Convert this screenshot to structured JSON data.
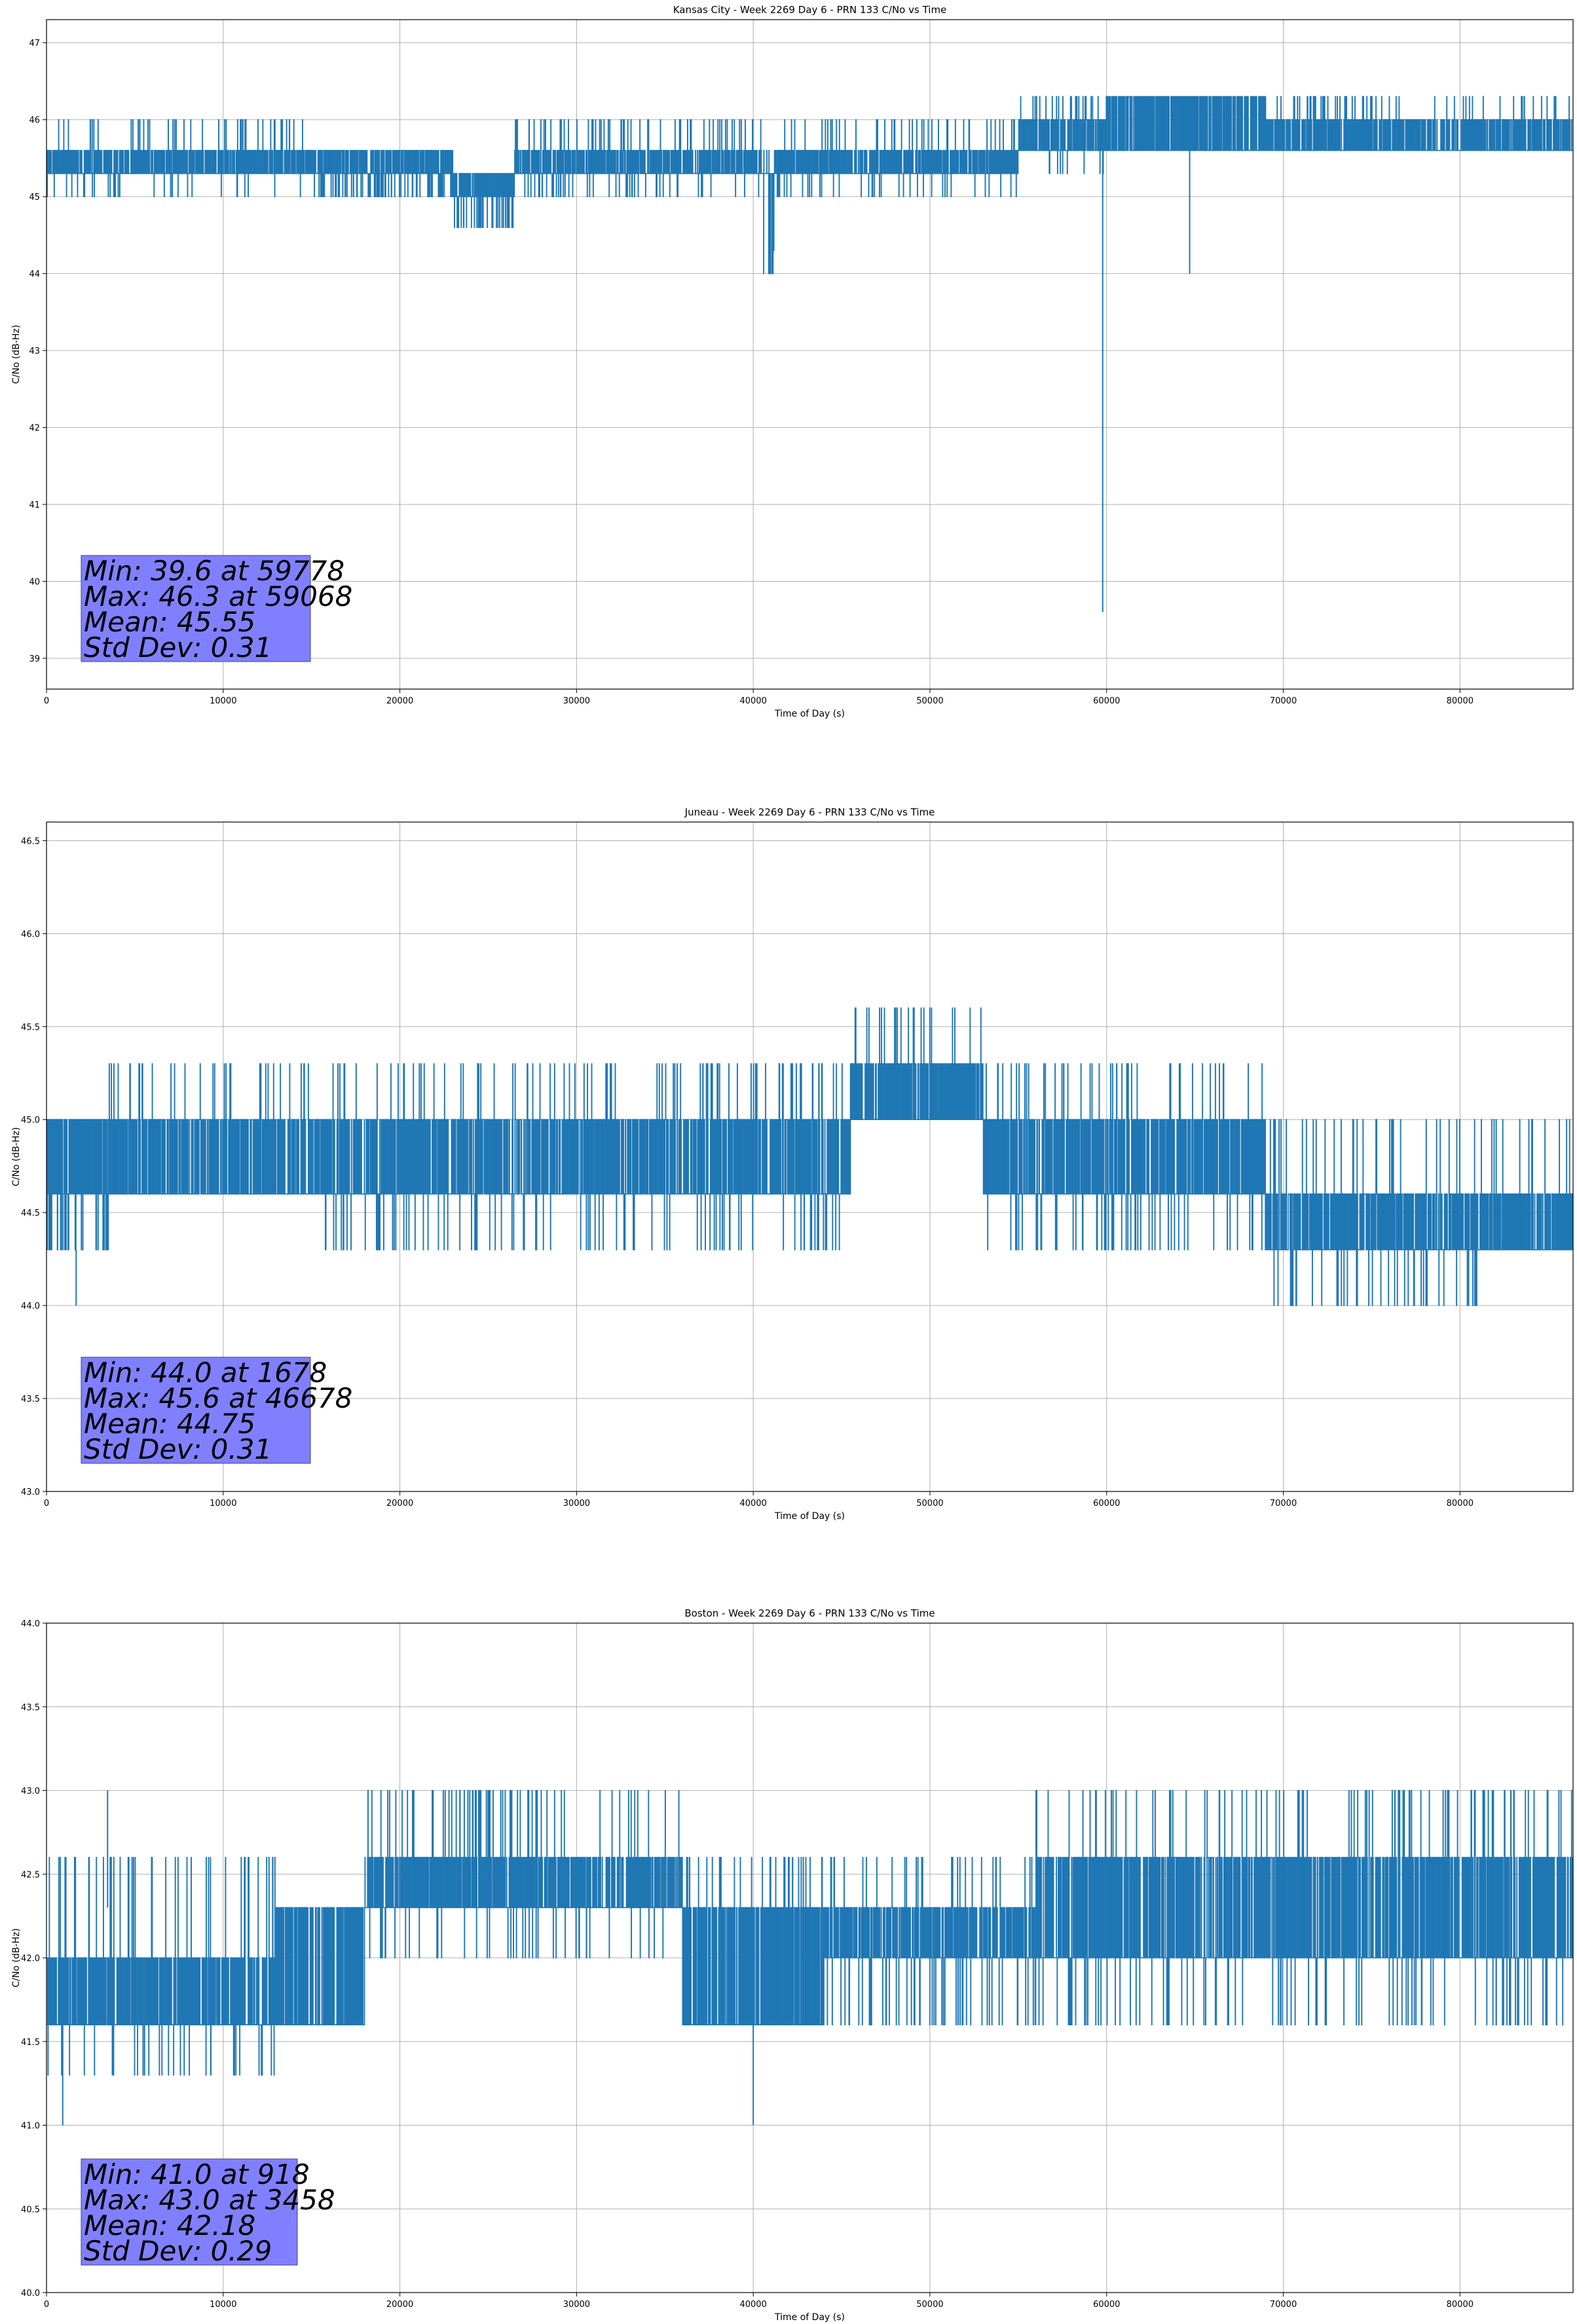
{
  "chart_data": [
    {
      "type": "line",
      "title": "Kansas City - Week 2269 Day 6 - PRN 133 C/No vs Time",
      "xlabel": "Time of Day (s)",
      "ylabel": "C/No (dB-Hz)",
      "xlim": [
        0,
        86400
      ],
      "ylim": [
        38.6,
        47.3
      ],
      "x_ticks": [
        0,
        10000,
        20000,
        30000,
        40000,
        50000,
        60000,
        70000,
        80000
      ],
      "y_ticks": [
        39,
        40,
        41,
        42,
        43,
        44,
        45,
        46,
        47
      ],
      "y_tick_labels": [
        "39",
        "40",
        "41",
        "42",
        "43",
        "44",
        "45",
        "46",
        "47"
      ],
      "grid": true,
      "color": "#1f77b4",
      "stats": [
        "Min: 39.6 at 59778",
        "Max: 46.3 at 59068",
        "Mean: 45.55",
        "Std Dev: 0.31"
      ],
      "segments": [
        {
          "x": [
            0,
            3000
          ],
          "base": 45.3,
          "hi": 45.6,
          "lo": 45.3,
          "up": 46.0,
          "down": 45.0
        },
        {
          "x": [
            3000,
            15000
          ],
          "base": 45.3,
          "hi": 45.6,
          "lo": 45.3,
          "up": 46.0,
          "down": 45.0
        },
        {
          "x": [
            15000,
            23000
          ],
          "base": 45.3,
          "hi": 45.6,
          "lo": 45.0,
          "up": 45.6,
          "down": 45.0
        },
        {
          "x": [
            23000,
            26500
          ],
          "base": 45.0,
          "hi": 45.3,
          "lo": 44.6,
          "up": 45.3,
          "down": 44.6
        },
        {
          "x": [
            26500,
            40500
          ],
          "base": 45.3,
          "hi": 45.6,
          "lo": 45.3,
          "up": 46.0,
          "down": 45.0
        },
        {
          "x": [
            40500,
            41200
          ],
          "base": 45.3,
          "hi": 45.3,
          "lo": 44.3,
          "up": 45.6,
          "down": 44.0
        },
        {
          "x": [
            41200,
            55000
          ],
          "base": 45.3,
          "hi": 45.6,
          "lo": 45.3,
          "up": 46.0,
          "down": 45.0
        },
        {
          "x": [
            55000,
            60000
          ],
          "base": 45.6,
          "hi": 46.0,
          "lo": 45.6,
          "up": 46.3,
          "down": 45.3
        },
        {
          "x": [
            60000,
            69000
          ],
          "base": 45.6,
          "hi": 46.3,
          "lo": 45.6,
          "up": 46.3,
          "down": 45.6
        },
        {
          "x": [
            69000,
            86400
          ],
          "base": 45.6,
          "hi": 46.0,
          "lo": 45.6,
          "up": 46.3,
          "down": 45.6
        }
      ],
      "spikes": [
        {
          "x": 59778,
          "from": 45.6,
          "to": 39.6
        },
        {
          "x": 64700,
          "from": 45.6,
          "to": 44.0
        },
        {
          "x": 40900,
          "from": 45.3,
          "to": 44.0
        }
      ]
    },
    {
      "type": "line",
      "title": "Juneau - Week 2269 Day 6 - PRN 133 C/No vs Time",
      "xlabel": "Time of Day (s)",
      "ylabel": "C/No (dB-Hz)",
      "xlim": [
        0,
        86400
      ],
      "ylim": [
        43.0,
        46.6
      ],
      "x_ticks": [
        0,
        10000,
        20000,
        30000,
        40000,
        50000,
        60000,
        70000,
        80000
      ],
      "y_ticks": [
        43.0,
        43.5,
        44.0,
        44.5,
        45.0,
        45.5,
        46.0,
        46.5
      ],
      "y_tick_labels": [
        "43.0",
        "43.5",
        "44.0",
        "44.5",
        "45.0",
        "45.5",
        "46.0",
        "46.5"
      ],
      "grid": true,
      "color": "#1f77b4",
      "stats": [
        "Min: 44.0 at 1678",
        "Max: 45.6 at 46678",
        "Mean: 44.75",
        "Std Dev: 0.31"
      ],
      "segments": [
        {
          "x": [
            0,
            3500
          ],
          "base": 44.6,
          "hi": 45.0,
          "lo": 44.3,
          "up": 45.0,
          "down": 44.3
        },
        {
          "x": [
            3500,
            15000
          ],
          "base": 44.6,
          "hi": 45.0,
          "lo": 44.6,
          "up": 45.3,
          "down": 44.6
        },
        {
          "x": [
            15000,
            45500
          ],
          "base": 44.6,
          "hi": 45.0,
          "lo": 44.6,
          "up": 45.3,
          "down": 44.3
        },
        {
          "x": [
            45500,
            53000
          ],
          "base": 45.0,
          "hi": 45.3,
          "lo": 45.0,
          "up": 45.6,
          "down": 45.0
        },
        {
          "x": [
            53000,
            69000
          ],
          "base": 44.6,
          "hi": 45.0,
          "lo": 44.6,
          "up": 45.3,
          "down": 44.3
        },
        {
          "x": [
            69000,
            81000
          ],
          "base": 44.3,
          "hi": 44.6,
          "lo": 44.3,
          "up": 45.0,
          "down": 44.0
        },
        {
          "x": [
            81000,
            86400
          ],
          "base": 44.3,
          "hi": 44.6,
          "lo": 44.3,
          "up": 45.0,
          "down": 44.3
        }
      ],
      "spikes": [
        {
          "x": 1678,
          "from": 44.3,
          "to": 44.0
        }
      ]
    },
    {
      "type": "line",
      "title": "Boston - Week 2269 Day 6 - PRN 133 C/No vs Time",
      "xlabel": "Time of Day (s)",
      "ylabel": "C/No (dB-Hz)",
      "xlim": [
        0,
        86400
      ],
      "ylim": [
        40.0,
        44.0
      ],
      "x_ticks": [
        0,
        10000,
        20000,
        30000,
        40000,
        50000,
        60000,
        70000,
        80000
      ],
      "y_ticks": [
        40.0,
        40.5,
        41.0,
        41.5,
        42.0,
        42.5,
        43.0,
        43.5,
        44.0
      ],
      "y_tick_labels": [
        "40.0",
        "40.5",
        "41.0",
        "41.5",
        "42.0",
        "42.5",
        "43.0",
        "43.5",
        "44.0"
      ],
      "grid": true,
      "color": "#1f77b4",
      "stats": [
        "Min: 41.0 at 918",
        "Max: 43.0 at 3458",
        "Mean: 42.18",
        "Std Dev: 0.29"
      ],
      "segments": [
        {
          "x": [
            0,
            13000
          ],
          "base": 41.6,
          "hi": 42.0,
          "lo": 41.6,
          "up": 42.6,
          "down": 41.3
        },
        {
          "x": [
            13000,
            18000
          ],
          "base": 41.6,
          "hi": 42.3,
          "lo": 41.6,
          "up": 42.3,
          "down": 41.6
        },
        {
          "x": [
            18000,
            36000
          ],
          "base": 42.3,
          "hi": 42.6,
          "lo": 42.3,
          "up": 43.0,
          "down": 42.0
        },
        {
          "x": [
            36000,
            44000
          ],
          "base": 41.6,
          "hi": 42.3,
          "lo": 41.6,
          "up": 42.6,
          "down": 41.6
        },
        {
          "x": [
            44000,
            56000
          ],
          "base": 42.0,
          "hi": 42.3,
          "lo": 42.0,
          "up": 42.6,
          "down": 41.6
        },
        {
          "x": [
            56000,
            86400
          ],
          "base": 42.0,
          "hi": 42.6,
          "lo": 42.0,
          "up": 43.0,
          "down": 41.6
        }
      ],
      "spikes": [
        {
          "x": 918,
          "from": 41.6,
          "to": 41.0
        },
        {
          "x": 3458,
          "from": 42.3,
          "to": 43.0
        },
        {
          "x": 40000,
          "from": 41.6,
          "to": 41.0
        }
      ]
    }
  ]
}
